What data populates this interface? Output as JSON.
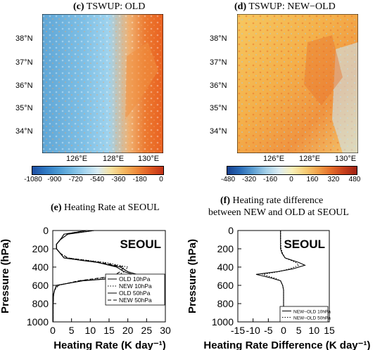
{
  "panels": {
    "c": {
      "letter": "(c)",
      "title": "TSWUP: OLD"
    },
    "d": {
      "letter": "(d)",
      "title": "TSWUP: NEW−OLD"
    },
    "e": {
      "letter": "(e)",
      "title": "Heating Rate at SEOUL"
    },
    "f": {
      "letter": "(f)",
      "title_line1": "Heating rate difference",
      "title_line2": "between NEW and OLD at SEOUL"
    }
  },
  "map_axes": {
    "lat_ticks": [
      "38°N",
      "37°N",
      "36°N",
      "35°N",
      "34°N"
    ],
    "lon_ticks": [
      "126°E",
      "128°E",
      "130°E"
    ]
  },
  "colorbar_c": {
    "labels": [
      "-1080",
      "-900",
      "-720",
      "-540",
      "-360",
      "-180",
      "0"
    ]
  },
  "colorbar_d": {
    "labels": [
      "-480",
      "-320",
      "-160",
      "0",
      "160",
      "320",
      "480"
    ]
  },
  "chart_data": [
    {
      "type": "line",
      "title": "Heating Rate at SEOUL",
      "annotation": "SEOUL",
      "xlabel": "Heating Rate (K day⁻¹)",
      "ylabel": "Pressure (hPa)",
      "xlim": [
        0,
        30
      ],
      "ylim": [
        1000,
        0
      ],
      "xticks": [
        "0",
        "5",
        "10",
        "15",
        "20",
        "25",
        "30"
      ],
      "yticks": [
        "0",
        "200",
        "400",
        "600",
        "800",
        "1000"
      ],
      "legend_position": "bottom-right",
      "y": [
        0,
        40,
        100,
        150,
        200,
        250,
        300,
        350,
        400,
        450,
        500,
        550,
        600,
        650,
        700,
        800,
        900,
        1000
      ],
      "series": [
        {
          "name": "OLD 10hPa",
          "style": "solid",
          "values": [
            11,
            4,
            2,
            1,
            1,
            2,
            3,
            12,
            18,
            20,
            24,
            8,
            1,
            0.5,
            0.2,
            0.1,
            0.1,
            0.1
          ]
        },
        {
          "name": "NEW 10hPa",
          "style": "dotted",
          "values": [
            11,
            4,
            2,
            1,
            1,
            2,
            4,
            14,
            20,
            19,
            17,
            7,
            1.5,
            0.5,
            0.2,
            0.1,
            0.1,
            0.1
          ]
        },
        {
          "name": "OLD 50hPa",
          "style": "solid",
          "values": [
            9,
            3,
            2,
            1,
            1,
            2,
            3,
            12,
            17,
            19,
            23,
            8,
            1,
            0.5,
            0.2,
            0.1,
            0.1,
            0.1
          ]
        },
        {
          "name": "NEW 50hPa",
          "style": "dashed",
          "values": [
            9,
            3,
            2,
            1,
            1,
            2,
            4,
            13,
            19,
            18,
            16,
            7,
            1.5,
            0.5,
            0.2,
            0.1,
            0.1,
            0.1
          ]
        }
      ]
    },
    {
      "type": "line",
      "title": "Heating rate difference between NEW and OLD at SEOUL",
      "annotation": "SEOUL",
      "xlabel": "Heating Rate Difference (K day⁻¹)",
      "ylabel": "Pressure (hPa)",
      "xlim": [
        -15,
        15
      ],
      "ylim": [
        1000,
        0
      ],
      "xticks": [
        "-15",
        "-10",
        "-5",
        "0",
        "5",
        "10",
        "15"
      ],
      "yticks": [
        "0",
        "200",
        "400",
        "600",
        "800",
        "1000"
      ],
      "legend_position": "bottom-right",
      "y": [
        0,
        100,
        200,
        250,
        300,
        350,
        380,
        420,
        450,
        480,
        520,
        550,
        600,
        650,
        700,
        800,
        900,
        1000
      ],
      "series": [
        {
          "name": "NEW−OLD 10hPa",
          "style": "solid",
          "values": [
            -1,
            -1,
            -1,
            -0.5,
            0.5,
            5,
            7,
            3,
            -2,
            -9,
            -4,
            -1,
            -0.3,
            0,
            0,
            0,
            0,
            0
          ]
        },
        {
          "name": "NEW−OLD 50hPa",
          "style": "dotted",
          "values": [
            -1,
            -1,
            -0.8,
            -0.3,
            0.5,
            4,
            5,
            2,
            -1.5,
            -7,
            -3,
            -1,
            -0.3,
            0,
            0,
            0,
            0,
            0
          ]
        }
      ]
    }
  ]
}
